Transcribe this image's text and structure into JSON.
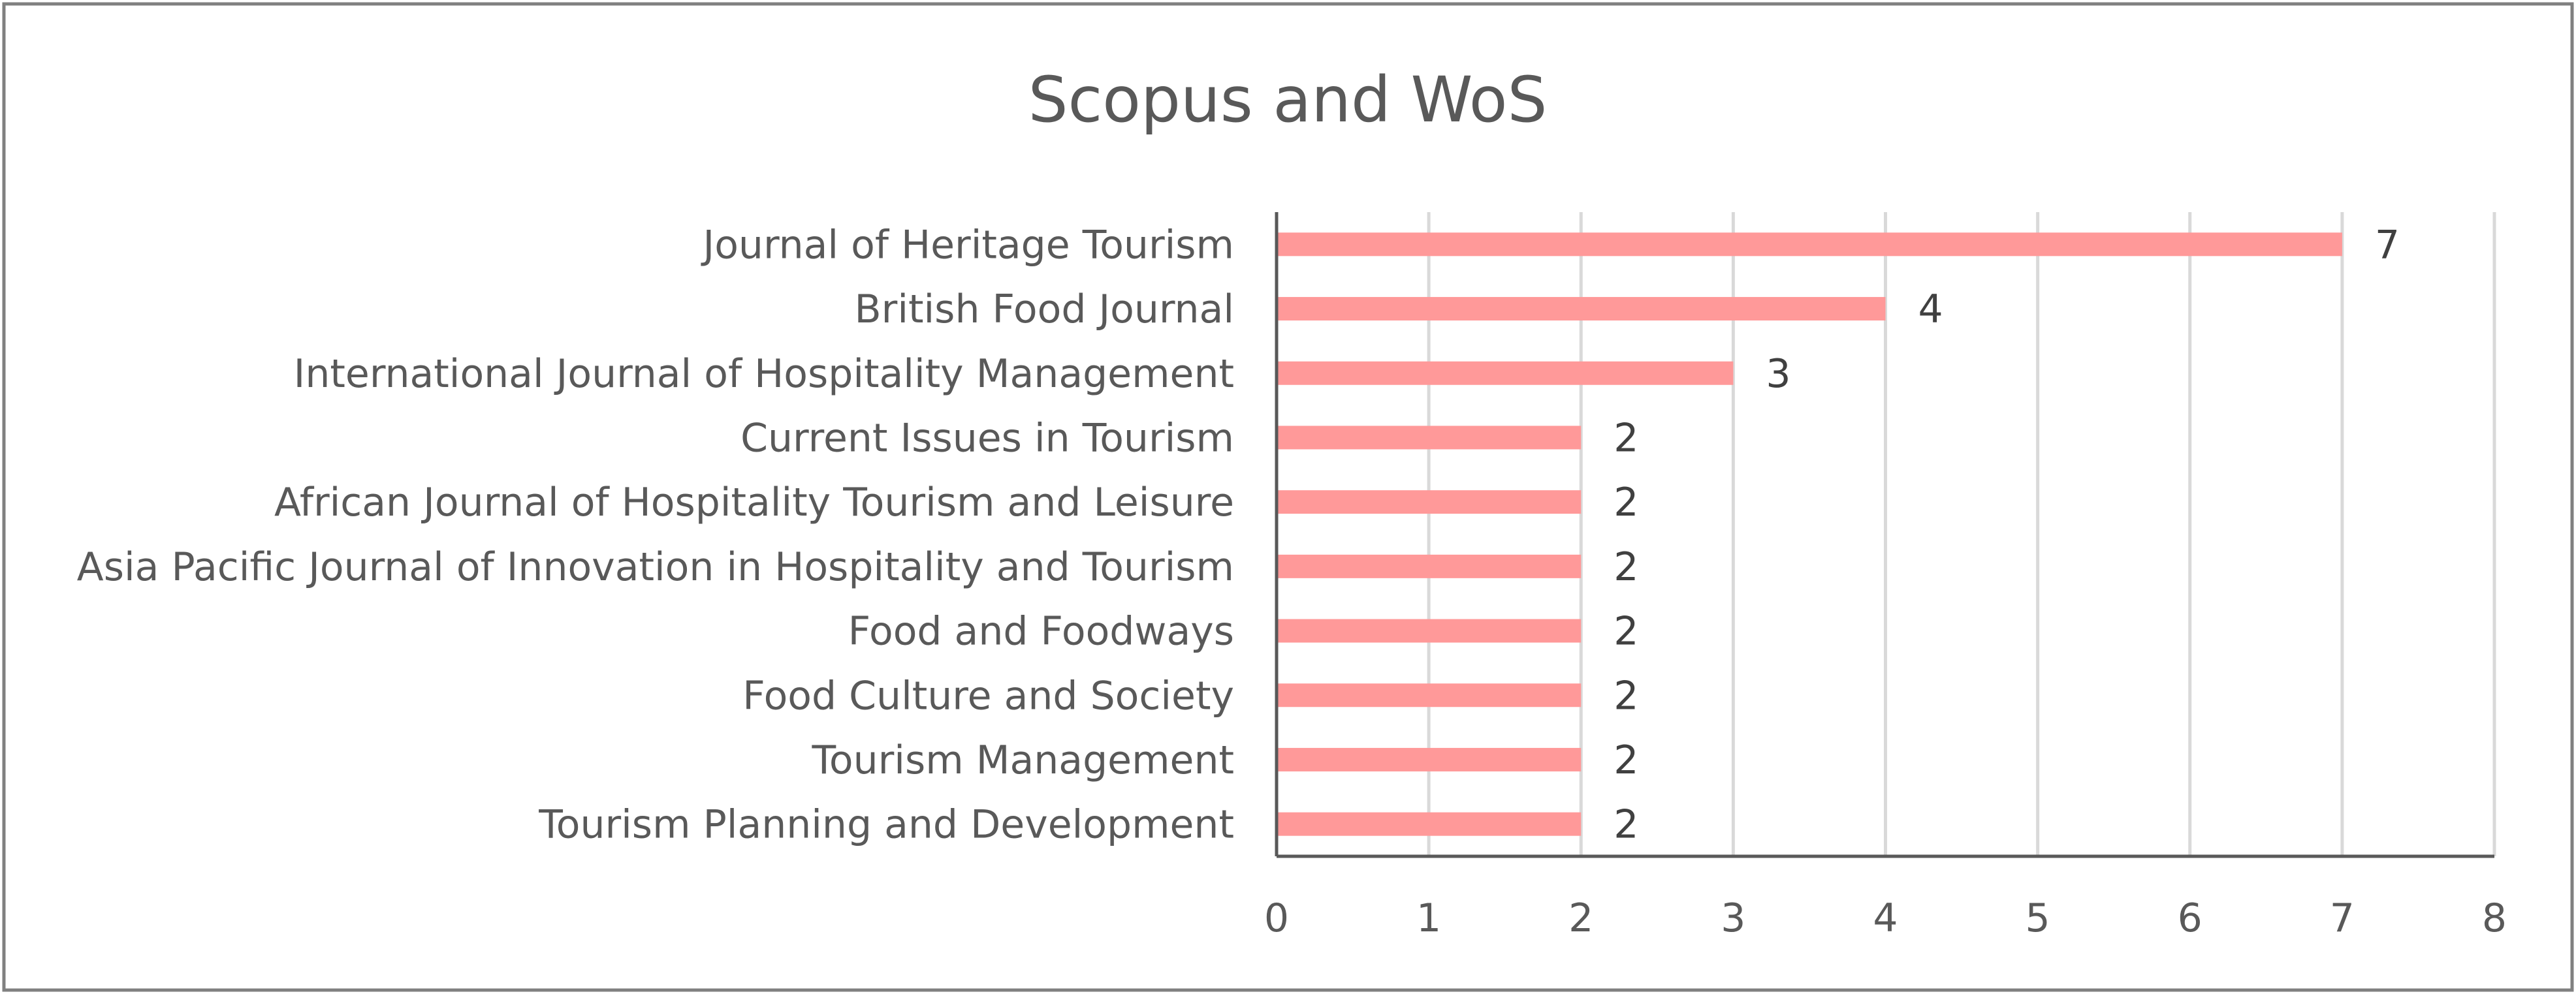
{
  "chart_data": {
    "type": "bar",
    "orientation": "horizontal",
    "title": "Scopus and WoS",
    "xlabel": "",
    "ylabel": "",
    "categories": [
      "Journal of Heritage Tourism",
      "British Food Journal",
      "International Journal of Hospitality Management",
      "Current Issues in Tourism",
      "African Journal of Hospitality Tourism and Leisure",
      "Asia Pacific Journal of Innovation in Hospitality and Tourism",
      "Food and Foodways",
      "Food Culture and Society",
      "Tourism Management",
      "Tourism Planning and Development"
    ],
    "values": [
      7,
      4,
      3,
      2,
      2,
      2,
      2,
      2,
      2,
      2
    ],
    "xlim": [
      0,
      8
    ],
    "xticks": [
      0,
      1,
      2,
      3,
      4,
      5,
      6,
      7,
      8
    ],
    "grid": true,
    "legend": "none",
    "data_labels": true,
    "colors": {
      "bar": "#FF9999",
      "grid": "#D9D9D9",
      "axis": "#595959",
      "frame": "#808080",
      "text": "#595959"
    }
  }
}
